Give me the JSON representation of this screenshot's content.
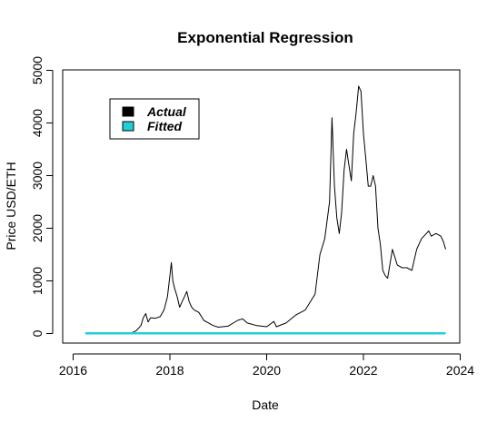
{
  "chart_data": {
    "type": "line",
    "title": "Exponential Regression",
    "xlabel": "Date",
    "ylabel": "Price USD/ETH",
    "xlim": [
      2016,
      2024
    ],
    "ylim": [
      0,
      5000
    ],
    "x_ticks": [
      2016,
      2018,
      2020,
      2022,
      2024
    ],
    "y_ticks": [
      0,
      1000,
      2000,
      3000,
      4000,
      5000
    ],
    "legend": {
      "position": "top-left",
      "entries": [
        "Actual",
        "Fitted"
      ]
    },
    "series": [
      {
        "name": "Actual",
        "color": "#000000",
        "x": [
          2017.2,
          2017.3,
          2017.4,
          2017.45,
          2017.5,
          2017.55,
          2017.6,
          2017.7,
          2017.8,
          2017.88,
          2017.95,
          2018.0,
          2018.03,
          2018.06,
          2018.1,
          2018.15,
          2018.2,
          2018.25,
          2018.3,
          2018.35,
          2018.4,
          2018.45,
          2018.5,
          2018.6,
          2018.7,
          2018.8,
          2018.9,
          2019.0,
          2019.2,
          2019.4,
          2019.5,
          2019.6,
          2019.8,
          2020.0,
          2020.15,
          2020.2,
          2020.4,
          2020.6,
          2020.7,
          2020.8,
          2020.9,
          2021.0,
          2021.1,
          2021.2,
          2021.3,
          2021.35,
          2021.4,
          2021.45,
          2021.5,
          2021.55,
          2021.6,
          2021.65,
          2021.7,
          2021.75,
          2021.8,
          2021.85,
          2021.9,
          2021.95,
          2022.0,
          2022.05,
          2022.1,
          2022.15,
          2022.2,
          2022.25,
          2022.3,
          2022.35,
          2022.4,
          2022.45,
          2022.5,
          2022.6,
          2022.7,
          2022.8,
          2022.9,
          2023.0,
          2023.1,
          2023.2,
          2023.3,
          2023.35,
          2023.4,
          2023.5,
          2023.6,
          2023.65,
          2023.7
        ],
        "y": [
          10,
          50,
          150,
          300,
          380,
          220,
          300,
          290,
          320,
          450,
          700,
          1100,
          1350,
          1000,
          850,
          700,
          500,
          600,
          700,
          800,
          600,
          500,
          450,
          400,
          250,
          200,
          150,
          120,
          140,
          250,
          280,
          200,
          150,
          130,
          230,
          130,
          200,
          350,
          400,
          450,
          600,
          750,
          1500,
          1800,
          2500,
          4100,
          2800,
          2200,
          1900,
          2300,
          3100,
          3500,
          3200,
          2900,
          3800,
          4200,
          4700,
          4600,
          3800,
          3300,
          2800,
          2800,
          3000,
          2800,
          2000,
          1700,
          1200,
          1100,
          1050,
          1600,
          1300,
          1250,
          1250,
          1200,
          1600,
          1800,
          1900,
          1950,
          1850,
          1900,
          1850,
          1750,
          1600
        ]
      },
      {
        "name": "Fitted",
        "color": "#22cfd8",
        "x": [
          2016.25,
          2023.7
        ],
        "y": [
          5,
          5
        ]
      }
    ]
  }
}
